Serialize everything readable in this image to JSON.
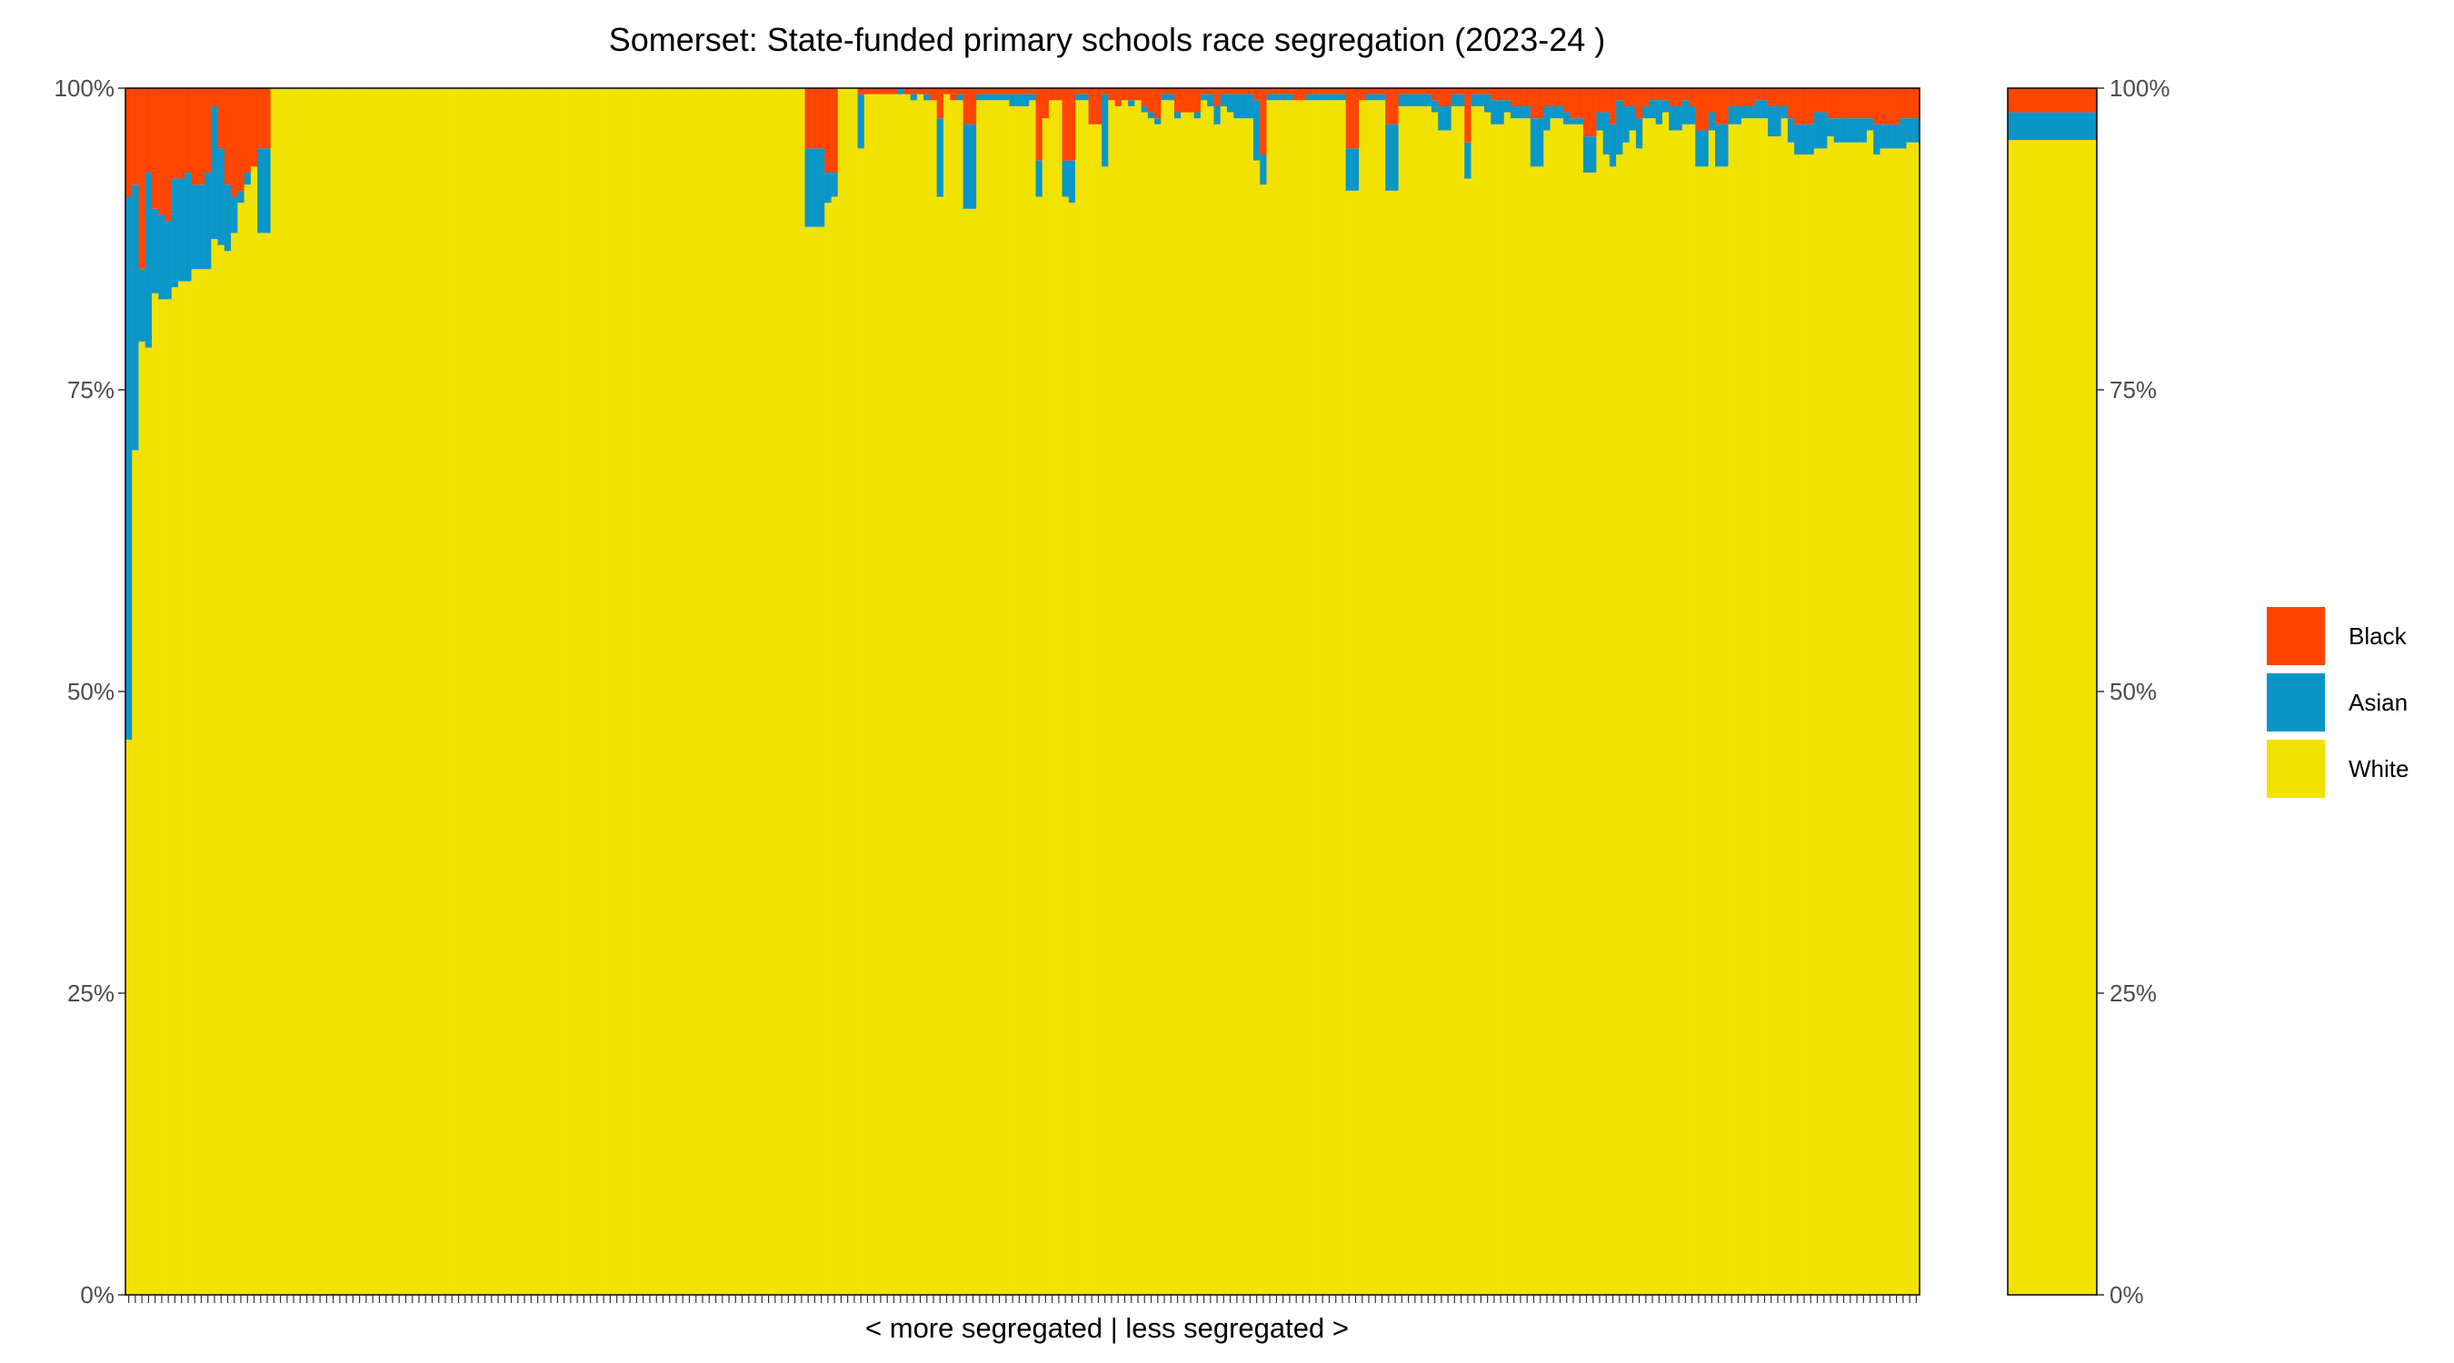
{
  "chart_data": {
    "type": "bar",
    "stacked": true,
    "title": "Somerset: State-funded primary schools race segregation (2023-24 )",
    "xlabel": "< more segregated | less segregated >",
    "ylabel": "",
    "ylim": [
      0,
      100
    ],
    "yticks": [
      "0%",
      "25%",
      "50%",
      "75%",
      "100%"
    ],
    "series_order": [
      "White",
      "Asian",
      "Black"
    ],
    "colors": {
      "White": "#f2e200",
      "Asian": "#0b96c8",
      "Black": "#ff4500"
    },
    "legend": {
      "position": "right",
      "entries": [
        {
          "name": "Black",
          "color": "#ff4500"
        },
        {
          "name": "Asian",
          "color": "#0b96c8"
        },
        {
          "name": "White",
          "color": "#f2e200"
        }
      ]
    },
    "schools": [
      {
        "w": 46.0,
        "a": 45.0,
        "b": 9.0
      },
      {
        "w": 70.0,
        "a": 22.0,
        "b": 8.0
      },
      {
        "w": 79.0,
        "a": 6.0,
        "b": 15.0
      },
      {
        "w": 78.5,
        "a": 14.5,
        "b": 7.0
      },
      {
        "w": 83.0,
        "a": 7.0,
        "b": 10.0
      },
      {
        "w": 82.5,
        "a": 7.0,
        "b": 10.5
      },
      {
        "w": 82.5,
        "a": 6.5,
        "b": 11.0
      },
      {
        "w": 83.5,
        "a": 9.0,
        "b": 7.5
      },
      {
        "w": 84.0,
        "a": 8.5,
        "b": 7.5
      },
      {
        "w": 84.0,
        "a": 9.0,
        "b": 7.0
      },
      {
        "w": 85.0,
        "a": 7.0,
        "b": 8.0
      },
      {
        "w": 85.0,
        "a": 7.0,
        "b": 8.0
      },
      {
        "w": 85.0,
        "a": 8.0,
        "b": 7.0
      },
      {
        "w": 87.5,
        "a": 11.0,
        "b": 1.5
      },
      {
        "w": 87.0,
        "a": 8.0,
        "b": 5.0
      },
      {
        "w": 86.5,
        "a": 5.5,
        "b": 8.0
      },
      {
        "w": 88.0,
        "a": 3.0,
        "b": 9.0
      },
      {
        "w": 90.5,
        "a": 1.0,
        "b": 8.5
      },
      {
        "w": 92.0,
        "a": 1.0,
        "b": 7.0
      },
      {
        "w": 93.5,
        "a": 0.0,
        "b": 6.5
      },
      {
        "w": 88.0,
        "a": 7.0,
        "b": 5.0
      },
      {
        "w": 88.0,
        "a": 7.0,
        "b": 5.0
      },
      {
        "w": 100,
        "a": 0,
        "b": 0
      },
      {
        "w": 100,
        "a": 0,
        "b": 0
      },
      {
        "w": 100,
        "a": 0,
        "b": 0
      },
      {
        "w": 100,
        "a": 0,
        "b": 0
      },
      {
        "w": 100,
        "a": 0,
        "b": 0
      },
      {
        "w": 100,
        "a": 0,
        "b": 0
      },
      {
        "w": 100,
        "a": 0,
        "b": 0
      },
      {
        "w": 100,
        "a": 0,
        "b": 0
      },
      {
        "w": 100,
        "a": 0,
        "b": 0
      },
      {
        "w": 100,
        "a": 0,
        "b": 0
      },
      {
        "w": 100,
        "a": 0,
        "b": 0
      },
      {
        "w": 100,
        "a": 0,
        "b": 0
      },
      {
        "w": 100,
        "a": 0,
        "b": 0
      },
      {
        "w": 100,
        "a": 0,
        "b": 0
      },
      {
        "w": 100,
        "a": 0,
        "b": 0
      },
      {
        "w": 100,
        "a": 0,
        "b": 0
      },
      {
        "w": 100,
        "a": 0,
        "b": 0
      },
      {
        "w": 100,
        "a": 0,
        "b": 0
      },
      {
        "w": 100,
        "a": 0,
        "b": 0
      },
      {
        "w": 100,
        "a": 0,
        "b": 0
      },
      {
        "w": 100,
        "a": 0,
        "b": 0
      },
      {
        "w": 100,
        "a": 0,
        "b": 0
      },
      {
        "w": 100,
        "a": 0,
        "b": 0
      },
      {
        "w": 100,
        "a": 0,
        "b": 0
      },
      {
        "w": 100,
        "a": 0,
        "b": 0
      },
      {
        "w": 100,
        "a": 0,
        "b": 0
      },
      {
        "w": 100,
        "a": 0,
        "b": 0
      },
      {
        "w": 100,
        "a": 0,
        "b": 0
      },
      {
        "w": 100,
        "a": 0,
        "b": 0
      },
      {
        "w": 100,
        "a": 0,
        "b": 0
      },
      {
        "w": 100,
        "a": 0,
        "b": 0
      },
      {
        "w": 100,
        "a": 0,
        "b": 0
      },
      {
        "w": 100,
        "a": 0,
        "b": 0
      },
      {
        "w": 100,
        "a": 0,
        "b": 0
      },
      {
        "w": 100,
        "a": 0,
        "b": 0
      },
      {
        "w": 100,
        "a": 0,
        "b": 0
      },
      {
        "w": 100,
        "a": 0,
        "b": 0
      },
      {
        "w": 100,
        "a": 0,
        "b": 0
      },
      {
        "w": 100,
        "a": 0,
        "b": 0
      },
      {
        "w": 100,
        "a": 0,
        "b": 0
      },
      {
        "w": 100,
        "a": 0,
        "b": 0
      },
      {
        "w": 100,
        "a": 0,
        "b": 0
      },
      {
        "w": 100,
        "a": 0,
        "b": 0
      },
      {
        "w": 100,
        "a": 0,
        "b": 0
      },
      {
        "w": 100,
        "a": 0,
        "b": 0
      },
      {
        "w": 100,
        "a": 0,
        "b": 0
      },
      {
        "w": 100,
        "a": 0,
        "b": 0
      },
      {
        "w": 100,
        "a": 0,
        "b": 0
      },
      {
        "w": 100,
        "a": 0,
        "b": 0
      },
      {
        "w": 100,
        "a": 0,
        "b": 0
      },
      {
        "w": 100,
        "a": 0,
        "b": 0
      },
      {
        "w": 100,
        "a": 0,
        "b": 0
      },
      {
        "w": 100,
        "a": 0,
        "b": 0
      },
      {
        "w": 100,
        "a": 0,
        "b": 0
      },
      {
        "w": 100,
        "a": 0,
        "b": 0
      },
      {
        "w": 100,
        "a": 0,
        "b": 0
      },
      {
        "w": 100,
        "a": 0,
        "b": 0
      },
      {
        "w": 100,
        "a": 0,
        "b": 0
      },
      {
        "w": 100,
        "a": 0,
        "b": 0
      },
      {
        "w": 100,
        "a": 0,
        "b": 0
      },
      {
        "w": 100,
        "a": 0,
        "b": 0
      },
      {
        "w": 100,
        "a": 0,
        "b": 0
      },
      {
        "w": 100,
        "a": 0,
        "b": 0
      },
      {
        "w": 100,
        "a": 0,
        "b": 0
      },
      {
        "w": 100,
        "a": 0,
        "b": 0
      },
      {
        "w": 100,
        "a": 0,
        "b": 0
      },
      {
        "w": 100,
        "a": 0,
        "b": 0
      },
      {
        "w": 100,
        "a": 0,
        "b": 0
      },
      {
        "w": 100,
        "a": 0,
        "b": 0
      },
      {
        "w": 100,
        "a": 0,
        "b": 0
      },
      {
        "w": 100,
        "a": 0,
        "b": 0
      },
      {
        "w": 100,
        "a": 0,
        "b": 0
      },
      {
        "w": 100,
        "a": 0,
        "b": 0
      },
      {
        "w": 100,
        "a": 0,
        "b": 0
      },
      {
        "w": 100,
        "a": 0,
        "b": 0
      },
      {
        "w": 100,
        "a": 0,
        "b": 0
      },
      {
        "w": 100,
        "a": 0,
        "b": 0
      },
      {
        "w": 100,
        "a": 0,
        "b": 0
      },
      {
        "w": 100,
        "a": 0,
        "b": 0
      },
      {
        "w": 100,
        "a": 0,
        "b": 0
      },
      {
        "w": 100,
        "a": 0,
        "b": 0
      },
      {
        "w": 88.5,
        "a": 6.5,
        "b": 5.0
      },
      {
        "w": 88.5,
        "a": 6.5,
        "b": 5.0
      },
      {
        "w": 88.5,
        "a": 6.5,
        "b": 5.0
      },
      {
        "w": 90.5,
        "a": 2.5,
        "b": 7.0
      },
      {
        "w": 91.0,
        "a": 2.0,
        "b": 7.0
      },
      {
        "w": 100,
        "a": 0,
        "b": 0
      },
      {
        "w": 100,
        "a": 0,
        "b": 0
      },
      {
        "w": 100,
        "a": 0,
        "b": 0
      },
      {
        "w": 95.0,
        "a": 4.5,
        "b": 0.5
      },
      {
        "w": 99.5,
        "a": 0.0,
        "b": 0.5
      },
      {
        "w": 99.5,
        "a": 0.0,
        "b": 0.5
      },
      {
        "w": 99.5,
        "a": 0.0,
        "b": 0.5
      },
      {
        "w": 99.5,
        "a": 0.0,
        "b": 0.5
      },
      {
        "w": 99.5,
        "a": 0.0,
        "b": 0.5
      },
      {
        "w": 99.5,
        "a": 0.5,
        "b": 0.0
      },
      {
        "w": 99.5,
        "a": 0.0,
        "b": 0.5
      },
      {
        "w": 99.0,
        "a": 0.5,
        "b": 0.5
      },
      {
        "w": 99.5,
        "a": 0.0,
        "b": 0.5
      },
      {
        "w": 99.0,
        "a": 0.5,
        "b": 0.5
      },
      {
        "w": 99.0,
        "a": 0.0,
        "b": 1.0
      },
      {
        "w": 91.0,
        "a": 6.5,
        "b": 2.5
      },
      {
        "w": 99.5,
        "a": 0.0,
        "b": 0.5
      },
      {
        "w": 99.0,
        "a": 0.0,
        "b": 1.0
      },
      {
        "w": 99.0,
        "a": 0.5,
        "b": 0.5
      },
      {
        "w": 90.0,
        "a": 7.0,
        "b": 3.0
      },
      {
        "w": 90.0,
        "a": 7.0,
        "b": 3.0
      },
      {
        "w": 99.0,
        "a": 0.5,
        "b": 0.5
      },
      {
        "w": 99.0,
        "a": 0.5,
        "b": 0.5
      },
      {
        "w": 99.0,
        "a": 0.5,
        "b": 0.5
      },
      {
        "w": 99.0,
        "a": 0.5,
        "b": 0.5
      },
      {
        "w": 99.0,
        "a": 0.5,
        "b": 0.5
      },
      {
        "w": 98.5,
        "a": 1.0,
        "b": 0.5
      },
      {
        "w": 98.5,
        "a": 1.0,
        "b": 0.5
      },
      {
        "w": 98.5,
        "a": 1.0,
        "b": 0.5
      },
      {
        "w": 99.0,
        "a": 0.5,
        "b": 0.5
      },
      {
        "w": 91.0,
        "a": 3.0,
        "b": 6.0
      },
      {
        "w": 97.5,
        "a": 0.0,
        "b": 2.5
      },
      {
        "w": 99.0,
        "a": 0.0,
        "b": 1.0
      },
      {
        "w": 99.0,
        "a": 0.0,
        "b": 1.0
      },
      {
        "w": 91.0,
        "a": 3.0,
        "b": 6.0
      },
      {
        "w": 90.5,
        "a": 3.5,
        "b": 6.0
      },
      {
        "w": 99.0,
        "a": 0.5,
        "b": 0.5
      },
      {
        "w": 99.0,
        "a": 0.5,
        "b": 0.5
      },
      {
        "w": 97.0,
        "a": 0.0,
        "b": 3.0
      },
      {
        "w": 97.0,
        "a": 0.0,
        "b": 3.0
      },
      {
        "w": 93.5,
        "a": 6.0,
        "b": 0.5
      },
      {
        "w": 99.0,
        "a": 0.0,
        "b": 1.0
      },
      {
        "w": 98.5,
        "a": 0.0,
        "b": 1.5
      },
      {
        "w": 99.0,
        "a": 0.0,
        "b": 1.0
      },
      {
        "w": 98.5,
        "a": 0.5,
        "b": 1.0
      },
      {
        "w": 99.0,
        "a": 0.0,
        "b": 1.0
      },
      {
        "w": 98.0,
        "a": 0.5,
        "b": 1.5
      },
      {
        "w": 97.5,
        "a": 0.5,
        "b": 2.0
      },
      {
        "w": 97.0,
        "a": 0.5,
        "b": 2.5
      },
      {
        "w": 99.0,
        "a": 0.5,
        "b": 0.5
      },
      {
        "w": 99.0,
        "a": 0.5,
        "b": 0.5
      },
      {
        "w": 97.5,
        "a": 0.5,
        "b": 2.0
      },
      {
        "w": 98.0,
        "a": 0.0,
        "b": 2.0
      },
      {
        "w": 98.0,
        "a": 0.0,
        "b": 2.0
      },
      {
        "w": 97.5,
        "a": 0.5,
        "b": 2.0
      },
      {
        "w": 99.0,
        "a": 0.5,
        "b": 0.5
      },
      {
        "w": 98.5,
        "a": 1.0,
        "b": 0.5
      },
      {
        "w": 97.0,
        "a": 1.5,
        "b": 1.5
      },
      {
        "w": 98.5,
        "a": 1.0,
        "b": 0.5
      },
      {
        "w": 98.0,
        "a": 1.5,
        "b": 0.5
      },
      {
        "w": 97.5,
        "a": 2.0,
        "b": 0.5
      },
      {
        "w": 97.5,
        "a": 2.0,
        "b": 0.5
      },
      {
        "w": 97.5,
        "a": 2.0,
        "b": 0.5
      },
      {
        "w": 94.0,
        "a": 5.0,
        "b": 1.0
      },
      {
        "w": 92.0,
        "a": 2.5,
        "b": 5.5
      },
      {
        "w": 99.0,
        "a": 0.5,
        "b": 0.5
      },
      {
        "w": 99.0,
        "a": 0.5,
        "b": 0.5
      },
      {
        "w": 99.0,
        "a": 0.5,
        "b": 0.5
      },
      {
        "w": 99.0,
        "a": 0.5,
        "b": 0.5
      },
      {
        "w": 99.0,
        "a": 0.0,
        "b": 1.0
      },
      {
        "w": 99.0,
        "a": 0.0,
        "b": 1.0
      },
      {
        "w": 99.0,
        "a": 0.5,
        "b": 0.5
      },
      {
        "w": 99.0,
        "a": 0.5,
        "b": 0.5
      },
      {
        "w": 99.0,
        "a": 0.5,
        "b": 0.5
      },
      {
        "w": 99.0,
        "a": 0.5,
        "b": 0.5
      },
      {
        "w": 99.0,
        "a": 0.5,
        "b": 0.5
      },
      {
        "w": 99.0,
        "a": 0.5,
        "b": 0.5
      },
      {
        "w": 91.5,
        "a": 3.5,
        "b": 5.0
      },
      {
        "w": 91.5,
        "a": 3.5,
        "b": 5.0
      },
      {
        "w": 99.0,
        "a": 0.0,
        "b": 1.0
      },
      {
        "w": 99.0,
        "a": 0.5,
        "b": 0.5
      },
      {
        "w": 99.0,
        "a": 0.5,
        "b": 0.5
      },
      {
        "w": 99.0,
        "a": 0.5,
        "b": 0.5
      },
      {
        "w": 91.5,
        "a": 5.5,
        "b": 3.0
      },
      {
        "w": 91.5,
        "a": 5.5,
        "b": 3.0
      },
      {
        "w": 98.5,
        "a": 1.0,
        "b": 0.5
      },
      {
        "w": 98.5,
        "a": 1.0,
        "b": 0.5
      },
      {
        "w": 98.5,
        "a": 1.0,
        "b": 0.5
      },
      {
        "w": 98.5,
        "a": 1.0,
        "b": 0.5
      },
      {
        "w": 98.5,
        "a": 1.0,
        "b": 0.5
      },
      {
        "w": 98.0,
        "a": 1.0,
        "b": 1.0
      },
      {
        "w": 96.5,
        "a": 2.0,
        "b": 1.5
      },
      {
        "w": 96.5,
        "a": 2.0,
        "b": 1.5
      },
      {
        "w": 98.5,
        "a": 1.0,
        "b": 0.5
      },
      {
        "w": 98.5,
        "a": 1.0,
        "b": 0.5
      },
      {
        "w": 92.5,
        "a": 3.0,
        "b": 4.5
      },
      {
        "w": 98.5,
        "a": 1.0,
        "b": 0.5
      },
      {
        "w": 98.5,
        "a": 1.0,
        "b": 0.5
      },
      {
        "w": 98.0,
        "a": 1.5,
        "b": 0.5
      },
      {
        "w": 97.0,
        "a": 2.0,
        "b": 1.0
      },
      {
        "w": 97.0,
        "a": 2.0,
        "b": 1.0
      },
      {
        "w": 98.0,
        "a": 1.0,
        "b": 1.0
      },
      {
        "w": 97.5,
        "a": 1.0,
        "b": 1.5
      },
      {
        "w": 97.5,
        "a": 1.0,
        "b": 1.5
      },
      {
        "w": 97.5,
        "a": 1.0,
        "b": 1.5
      },
      {
        "w": 93.5,
        "a": 4.0,
        "b": 2.5
      },
      {
        "w": 93.5,
        "a": 4.0,
        "b": 2.5
      },
      {
        "w": 96.5,
        "a": 2.0,
        "b": 1.5
      },
      {
        "w": 97.5,
        "a": 1.0,
        "b": 1.5
      },
      {
        "w": 97.5,
        "a": 1.0,
        "b": 1.5
      },
      {
        "w": 97.0,
        "a": 1.0,
        "b": 2.0
      },
      {
        "w": 97.0,
        "a": 0.5,
        "b": 2.5
      },
      {
        "w": 97.0,
        "a": 0.5,
        "b": 2.5
      },
      {
        "w": 93.0,
        "a": 3.0,
        "b": 4.0
      },
      {
        "w": 93.0,
        "a": 3.0,
        "b": 4.0
      },
      {
        "w": 96.5,
        "a": 1.5,
        "b": 2.0
      },
      {
        "w": 94.5,
        "a": 3.5,
        "b": 2.0
      },
      {
        "w": 93.5,
        "a": 3.5,
        "b": 3.0
      },
      {
        "w": 94.5,
        "a": 4.5,
        "b": 1.0
      },
      {
        "w": 95.5,
        "a": 3.0,
        "b": 1.5
      },
      {
        "w": 96.5,
        "a": 2.0,
        "b": 1.5
      },
      {
        "w": 95.0,
        "a": 2.5,
        "b": 2.5
      },
      {
        "w": 97.5,
        "a": 1.0,
        "b": 1.5
      },
      {
        "w": 97.5,
        "a": 1.5,
        "b": 1.0
      },
      {
        "w": 97.0,
        "a": 2.0,
        "b": 1.0
      },
      {
        "w": 98.0,
        "a": 1.0,
        "b": 1.0
      },
      {
        "w": 96.5,
        "a": 2.0,
        "b": 1.5
      },
      {
        "w": 96.5,
        "a": 2.0,
        "b": 1.5
      },
      {
        "w": 97.0,
        "a": 2.0,
        "b": 1.0
      },
      {
        "w": 97.0,
        "a": 1.5,
        "b": 1.5
      },
      {
        "w": 93.5,
        "a": 3.0,
        "b": 3.5
      },
      {
        "w": 93.5,
        "a": 3.0,
        "b": 3.5
      },
      {
        "w": 96.5,
        "a": 1.5,
        "b": 2.0
      },
      {
        "w": 93.5,
        "a": 3.5,
        "b": 3.0
      },
      {
        "w": 93.5,
        "a": 3.5,
        "b": 3.0
      },
      {
        "w": 97.0,
        "a": 1.5,
        "b": 1.5
      },
      {
        "w": 97.0,
        "a": 1.5,
        "b": 1.5
      },
      {
        "w": 97.5,
        "a": 1.0,
        "b": 1.5
      },
      {
        "w": 97.5,
        "a": 1.0,
        "b": 1.5
      },
      {
        "w": 97.5,
        "a": 1.5,
        "b": 1.0
      },
      {
        "w": 97.5,
        "a": 1.5,
        "b": 1.0
      },
      {
        "w": 96.0,
        "a": 2.5,
        "b": 1.5
      },
      {
        "w": 96.0,
        "a": 2.5,
        "b": 1.5
      },
      {
        "w": 97.5,
        "a": 1.0,
        "b": 1.5
      },
      {
        "w": 95.5,
        "a": 2.0,
        "b": 2.5
      },
      {
        "w": 94.5,
        "a": 2.5,
        "b": 3.0
      },
      {
        "w": 94.5,
        "a": 2.5,
        "b": 3.0
      },
      {
        "w": 94.5,
        "a": 2.5,
        "b": 3.0
      },
      {
        "w": 95.0,
        "a": 3.0,
        "b": 2.0
      },
      {
        "w": 95.0,
        "a": 3.0,
        "b": 2.0
      },
      {
        "w": 96.0,
        "a": 1.5,
        "b": 2.5
      },
      {
        "w": 95.5,
        "a": 2.0,
        "b": 2.5
      },
      {
        "w": 95.5,
        "a": 2.0,
        "b": 2.5
      },
      {
        "w": 95.5,
        "a": 2.0,
        "b": 2.5
      },
      {
        "w": 95.5,
        "a": 2.0,
        "b": 2.5
      },
      {
        "w": 95.5,
        "a": 2.0,
        "b": 2.5
      },
      {
        "w": 96.5,
        "a": 1.0,
        "b": 2.5
      },
      {
        "w": 94.5,
        "a": 2.5,
        "b": 3.0
      },
      {
        "w": 95.0,
        "a": 2.0,
        "b": 3.0
      },
      {
        "w": 95.0,
        "a": 2.0,
        "b": 3.0
      },
      {
        "w": 95.0,
        "a": 2.0,
        "b": 3.0
      },
      {
        "w": 95.0,
        "a": 2.5,
        "b": 2.5
      },
      {
        "w": 95.5,
        "a": 2.0,
        "b": 2.5
      },
      {
        "w": 95.5,
        "a": 2.0,
        "b": 2.5
      }
    ],
    "overall": {
      "w": 95.7,
      "a": 2.3,
      "b": 2.0
    }
  }
}
